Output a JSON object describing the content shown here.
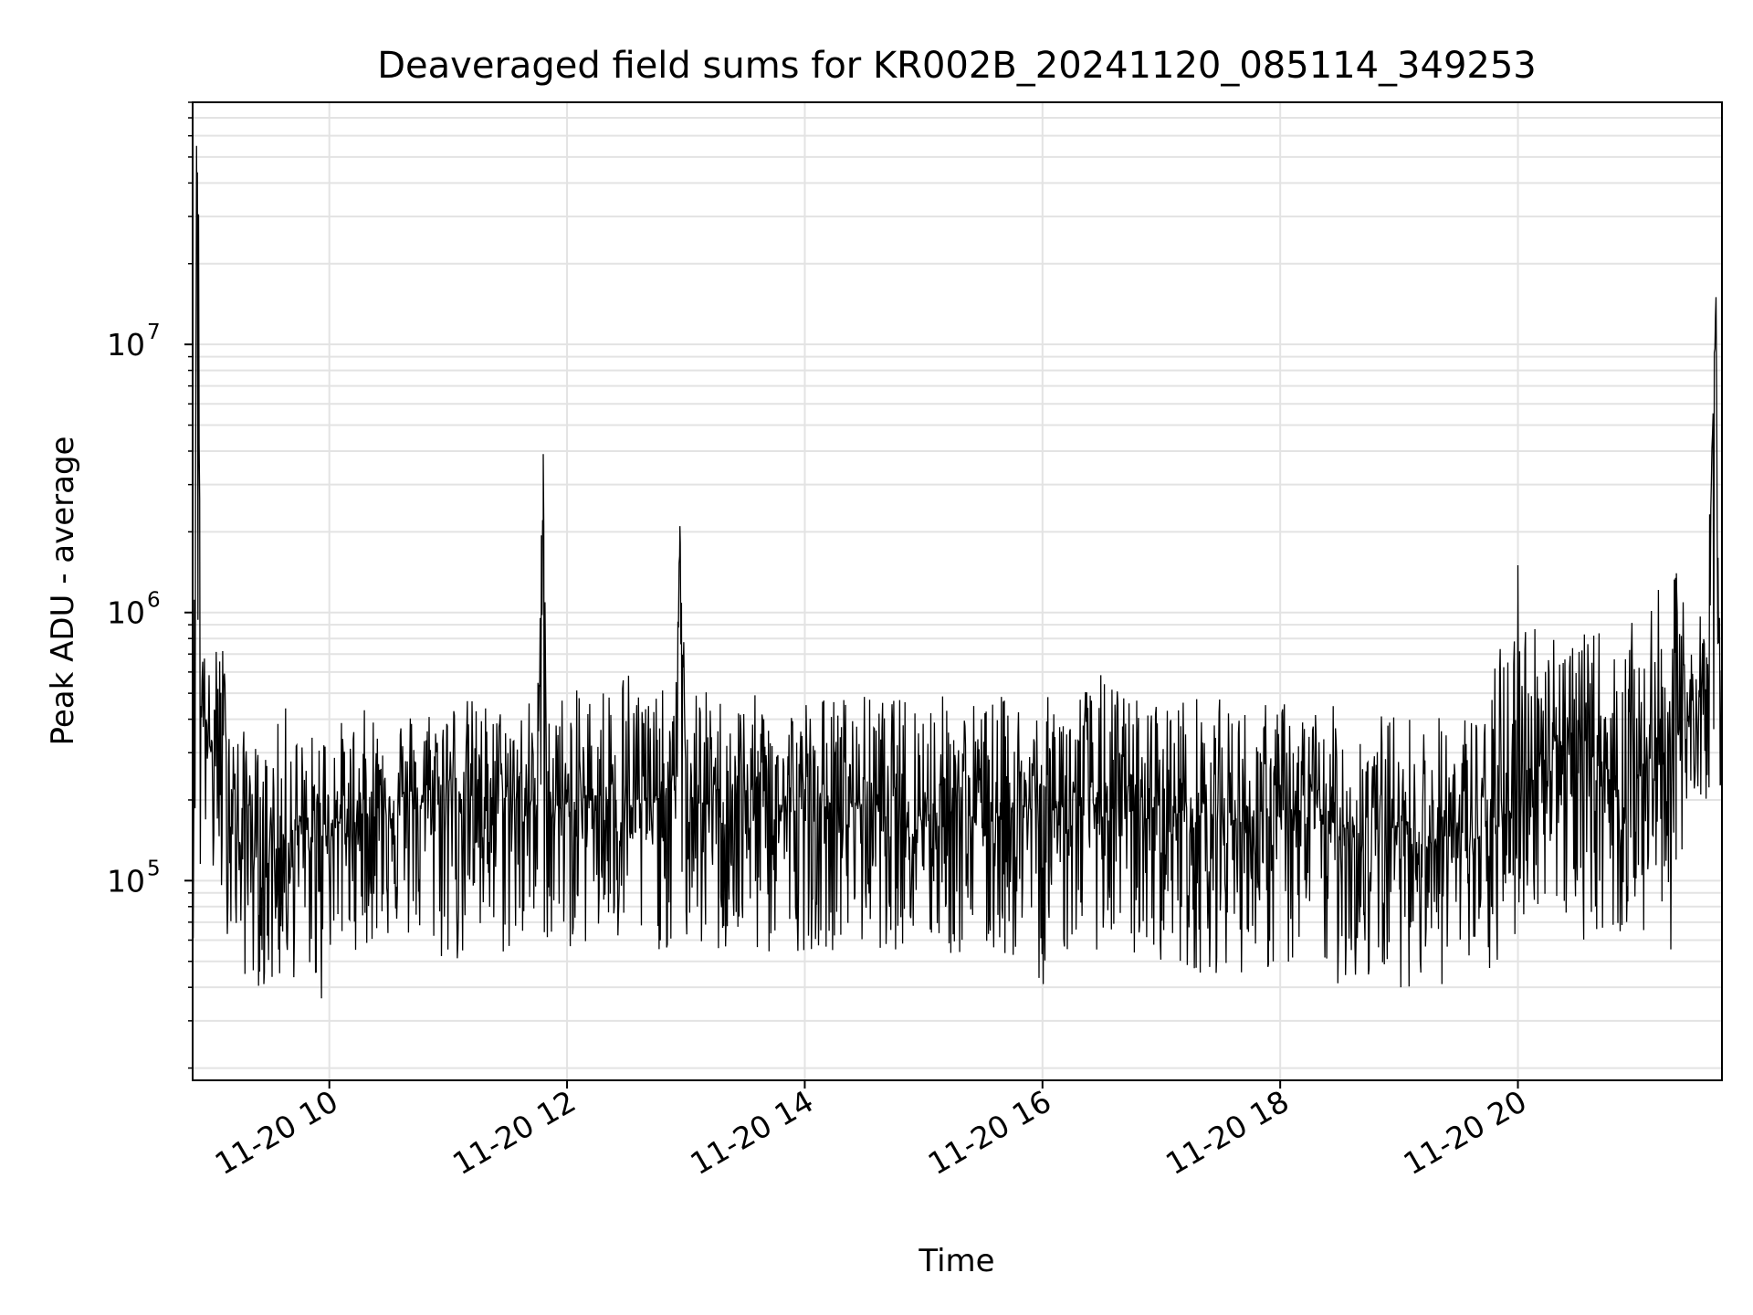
{
  "chart_data": {
    "type": "line",
    "title": "Deaveraged field sums for KR002B_20241120_085114_349253",
    "xlabel": "Time",
    "ylabel": "Peak ADU - average",
    "yscale": "log",
    "ylim": [
      18000,
      80000000
    ],
    "xlim": [
      "2024-11-20T08:51",
      "2024-11-20T21:43"
    ],
    "grid": true,
    "line_color": "#000000",
    "x_ticks": [
      {
        "value": "2024-11-20T10:00",
        "label": "11-20 10"
      },
      {
        "value": "2024-11-20T12:00",
        "label": "11-20 12"
      },
      {
        "value": "2024-11-20T14:00",
        "label": "11-20 14"
      },
      {
        "value": "2024-11-20T16:00",
        "label": "11-20 16"
      },
      {
        "value": "2024-11-20T18:00",
        "label": "11-20 18"
      },
      {
        "value": "2024-11-20T20:00",
        "label": "11-20 20"
      }
    ],
    "y_ticks": [
      {
        "value": 100000,
        "base": "10",
        "exp": "5"
      },
      {
        "value": 1000000,
        "base": "10",
        "exp": "6"
      },
      {
        "value": 10000000,
        "base": "10",
        "exp": "7"
      }
    ],
    "series": [
      {
        "x": [
          "2024-11-20T08:51",
          "2024-11-20T08:52",
          "2024-11-20T08:53",
          "2024-11-20T08:54",
          "2024-11-20T08:55",
          "2024-11-20T08:56",
          "2024-11-20T08:58",
          "2024-11-20T09:00",
          "2024-11-20T09:05",
          "2024-11-20T09:10",
          "2024-11-20T09:15",
          "2024-11-20T09:20",
          "2024-11-20T09:25",
          "2024-11-20T09:30",
          "2024-11-20T09:35",
          "2024-11-20T09:40",
          "2024-11-20T09:45",
          "2024-11-20T09:50",
          "2024-11-20T09:55",
          "2024-11-20T10:00",
          "2024-11-20T10:10",
          "2024-11-20T10:20",
          "2024-11-20T10:30",
          "2024-11-20T10:45",
          "2024-11-20T11:00",
          "2024-11-20T11:15",
          "2024-11-20T11:30",
          "2024-11-20T11:45",
          "2024-11-20T11:48",
          "2024-11-20T11:50",
          "2024-11-20T12:00",
          "2024-11-20T12:15",
          "2024-11-20T12:30",
          "2024-11-20T12:45",
          "2024-11-20T12:55",
          "2024-11-20T12:57",
          "2024-11-20T13:00",
          "2024-11-20T13:15",
          "2024-11-20T13:30",
          "2024-11-20T13:45",
          "2024-11-20T14:00",
          "2024-11-20T14:15",
          "2024-11-20T14:30",
          "2024-11-20T14:45",
          "2024-11-20T15:00",
          "2024-11-20T15:15",
          "2024-11-20T15:30",
          "2024-11-20T15:45",
          "2024-11-20T16:00",
          "2024-11-20T16:15",
          "2024-11-20T16:30",
          "2024-11-20T16:45",
          "2024-11-20T17:00",
          "2024-11-20T17:15",
          "2024-11-20T17:30",
          "2024-11-20T17:45",
          "2024-11-20T18:00",
          "2024-11-20T18:15",
          "2024-11-20T18:30",
          "2024-11-20T18:45",
          "2024-11-20T19:00",
          "2024-11-20T19:15",
          "2024-11-20T19:30",
          "2024-11-20T19:45",
          "2024-11-20T20:00",
          "2024-11-20T20:10",
          "2024-11-20T20:20",
          "2024-11-20T20:30",
          "2024-11-20T20:40",
          "2024-11-20T20:50",
          "2024-11-20T21:00",
          "2024-11-20T21:10",
          "2024-11-20T21:20",
          "2024-11-20T21:30",
          "2024-11-20T21:35",
          "2024-11-20T21:40",
          "2024-11-20T21:41",
          "2024-11-20T21:43"
        ],
        "y": [
          700000,
          900000,
          55000000,
          30000000,
          350000,
          600000,
          400000,
          300000,
          350000,
          250000,
          130000,
          200000,
          90000,
          140000,
          120000,
          150000,
          160000,
          130000,
          150000,
          170000,
          160000,
          180000,
          200000,
          190000,
          230000,
          200000,
          210000,
          190000,
          3000000,
          200000,
          180000,
          210000,
          190000,
          200000,
          230000,
          1900000,
          200000,
          190000,
          200000,
          190000,
          180000,
          190000,
          200000,
          180000,
          180000,
          190000,
          170000,
          190000,
          180000,
          200000,
          190000,
          180000,
          190000,
          170000,
          180000,
          160000,
          170000,
          180000,
          160000,
          150000,
          160000,
          140000,
          150000,
          140000,
          200000,
          300000,
          350000,
          250000,
          300000,
          220000,
          250000,
          300000,
          350000,
          450000,
          500000,
          15000000,
          600000,
          550000
        ],
        "y_min": [
          60000,
          60000,
          300000,
          300000,
          60000,
          150000,
          120000,
          90000,
          70000,
          60000,
          45000,
          40000,
          40000,
          35000,
          40000,
          40000,
          45000,
          45000,
          30000,
          50000,
          55000,
          55000,
          60000,
          55000,
          45000,
          50000,
          50000,
          55000,
          55000,
          55000,
          55000,
          55000,
          50000,
          55000,
          50000,
          55000,
          55000,
          50000,
          50000,
          50000,
          55000,
          55000,
          55000,
          55000,
          55000,
          50000,
          50000,
          50000,
          40000,
          55000,
          55000,
          50000,
          50000,
          45000,
          45000,
          45000,
          45000,
          45000,
          40000,
          40000,
          40000,
          40000,
          40000,
          40000,
          60000,
          80000,
          70000,
          60000,
          60000,
          60000,
          60000,
          55000,
          55000,
          200000,
          200000,
          200000,
          200000,
          200000
        ],
        "y_max": [
          1000000,
          1200000,
          55000000,
          30000000,
          700000,
          800000,
          650000,
          600000,
          900000,
          500000,
          350000,
          400000,
          300000,
          350000,
          400000,
          500000,
          350000,
          350000,
          400000,
          400000,
          400000,
          450000,
          450000,
          450000,
          500000,
          480000,
          450000,
          500000,
          3900000,
          550000,
          500000,
          550000,
          700000,
          500000,
          550000,
          2100000,
          550000,
          500000,
          500000,
          480000,
          500000,
          500000,
          500000,
          480000,
          550000,
          480000,
          480000,
          500000,
          480000,
          520000,
          600000,
          500000,
          480000,
          500000,
          480000,
          450000,
          480000,
          450000,
          450000,
          430000,
          430000,
          420000,
          420000,
          500000,
          1500000,
          900000,
          1000000,
          800000,
          900000,
          700000,
          1000000,
          1200000,
          1400000,
          1000000,
          1000000,
          15000000,
          1600000,
          1200000
        ]
      }
    ]
  }
}
